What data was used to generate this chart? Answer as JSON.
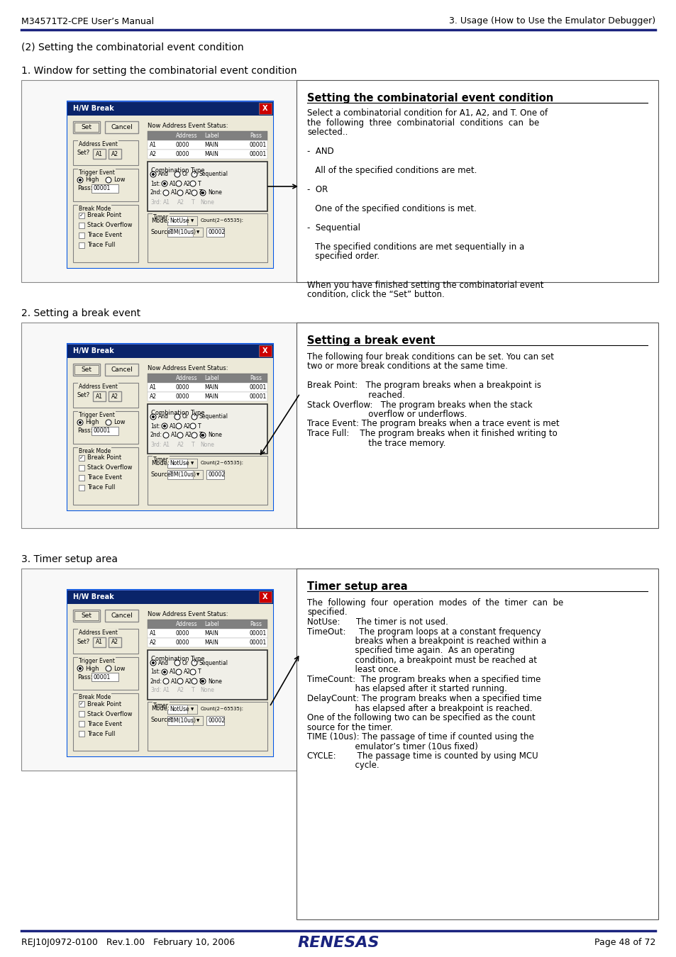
{
  "header_left": "M34571T2-CPE User’s Manual",
  "header_right": "3. Usage (How to Use the Emulator Debugger)",
  "footer_left": "REJ10J0972-0100   Rev.1.00   February 10, 2006",
  "footer_right": "Page 48 of 72",
  "header_line_color": "#1a237e",
  "section_title": "(2) Setting the combinatorial event condition",
  "section1_title": "1. Window for setting the combinatorial event condition",
  "section2_title": "2. Setting a break event",
  "section3_title": "3. Timer setup area",
  "box1_title": "Setting the combinatorial event condition",
  "box1_lines": [
    [
      "n",
      "Select a combinatorial condition for A1, A2, and T. One of"
    ],
    [
      "n",
      "the  following  three  combinatorial  conditions  can  be"
    ],
    [
      "n",
      "selected.."
    ],
    [
      "e",
      ""
    ],
    [
      "n",
      "-  AND"
    ],
    [
      "e",
      ""
    ],
    [
      "n",
      "   All of the specified conditions are met."
    ],
    [
      "e",
      ""
    ],
    [
      "n",
      "-  OR"
    ],
    [
      "e",
      ""
    ],
    [
      "n",
      "   One of the specified conditions is met."
    ],
    [
      "e",
      ""
    ],
    [
      "n",
      "-  Sequential"
    ],
    [
      "e",
      ""
    ],
    [
      "n",
      "   The specified conditions are met sequentially in a"
    ],
    [
      "n",
      "   specified order."
    ],
    [
      "e",
      ""
    ],
    [
      "e",
      ""
    ],
    [
      "n",
      "When you have finished setting the combinatorial event"
    ],
    [
      "n",
      "condition, click the “Set” button."
    ]
  ],
  "box2_title": "Setting a break event",
  "box2_lines": [
    [
      "n",
      "The following four break conditions can be set. You can set"
    ],
    [
      "n",
      "two or more break conditions at the same time."
    ],
    [
      "e",
      ""
    ],
    [
      "n",
      "Break Point:   The program breaks when a breakpoint is"
    ],
    [
      "n",
      "                       reached."
    ],
    [
      "n",
      "Stack Overflow:   The program breaks when the stack"
    ],
    [
      "n",
      "                       overflow or underflows."
    ],
    [
      "n",
      "Trace Event: The program breaks when a trace event is met"
    ],
    [
      "n",
      "Trace Full:    The program breaks when it finished writing to"
    ],
    [
      "n",
      "                       the trace memory."
    ]
  ],
  "box3_title": "Timer setup area",
  "box3_lines": [
    [
      "n",
      "The  following  four  operation  modes  of  the  timer  can  be"
    ],
    [
      "n",
      "specified."
    ],
    [
      "n",
      "NotUse:      The timer is not used."
    ],
    [
      "n",
      "TimeOut:     The program loops at a constant frequency"
    ],
    [
      "n",
      "                  breaks when a breakpoint is reached within a"
    ],
    [
      "n",
      "                  specified time again.  As an operating"
    ],
    [
      "n",
      "                  condition, a breakpoint must be reached at"
    ],
    [
      "n",
      "                  least once."
    ],
    [
      "n",
      "TimeCount:  The program breaks when a specified time"
    ],
    [
      "n",
      "                  has elapsed after it started running."
    ],
    [
      "n",
      "DelayCount: The program breaks when a specified time"
    ],
    [
      "n",
      "                  has elapsed after a breakpoint is reached."
    ],
    [
      "n",
      "One of the following two can be specified as the count"
    ],
    [
      "n",
      "source for the timer."
    ],
    [
      "n",
      "TIME (10us): The passage of time if counted using the"
    ],
    [
      "n",
      "                  emulator’s timer (10us fixed)"
    ],
    [
      "n",
      "CYCLE:        The passage time is counted by using MCU"
    ],
    [
      "n",
      "                  cycle."
    ]
  ],
  "bg_color": "#ffffff",
  "text_color": "#000000",
  "blue_color": "#1a237e",
  "dialog_bg": "#d4d0c8",
  "dialog_title_bg": "#0000aa",
  "dialog_blue_border": "#0078d4"
}
